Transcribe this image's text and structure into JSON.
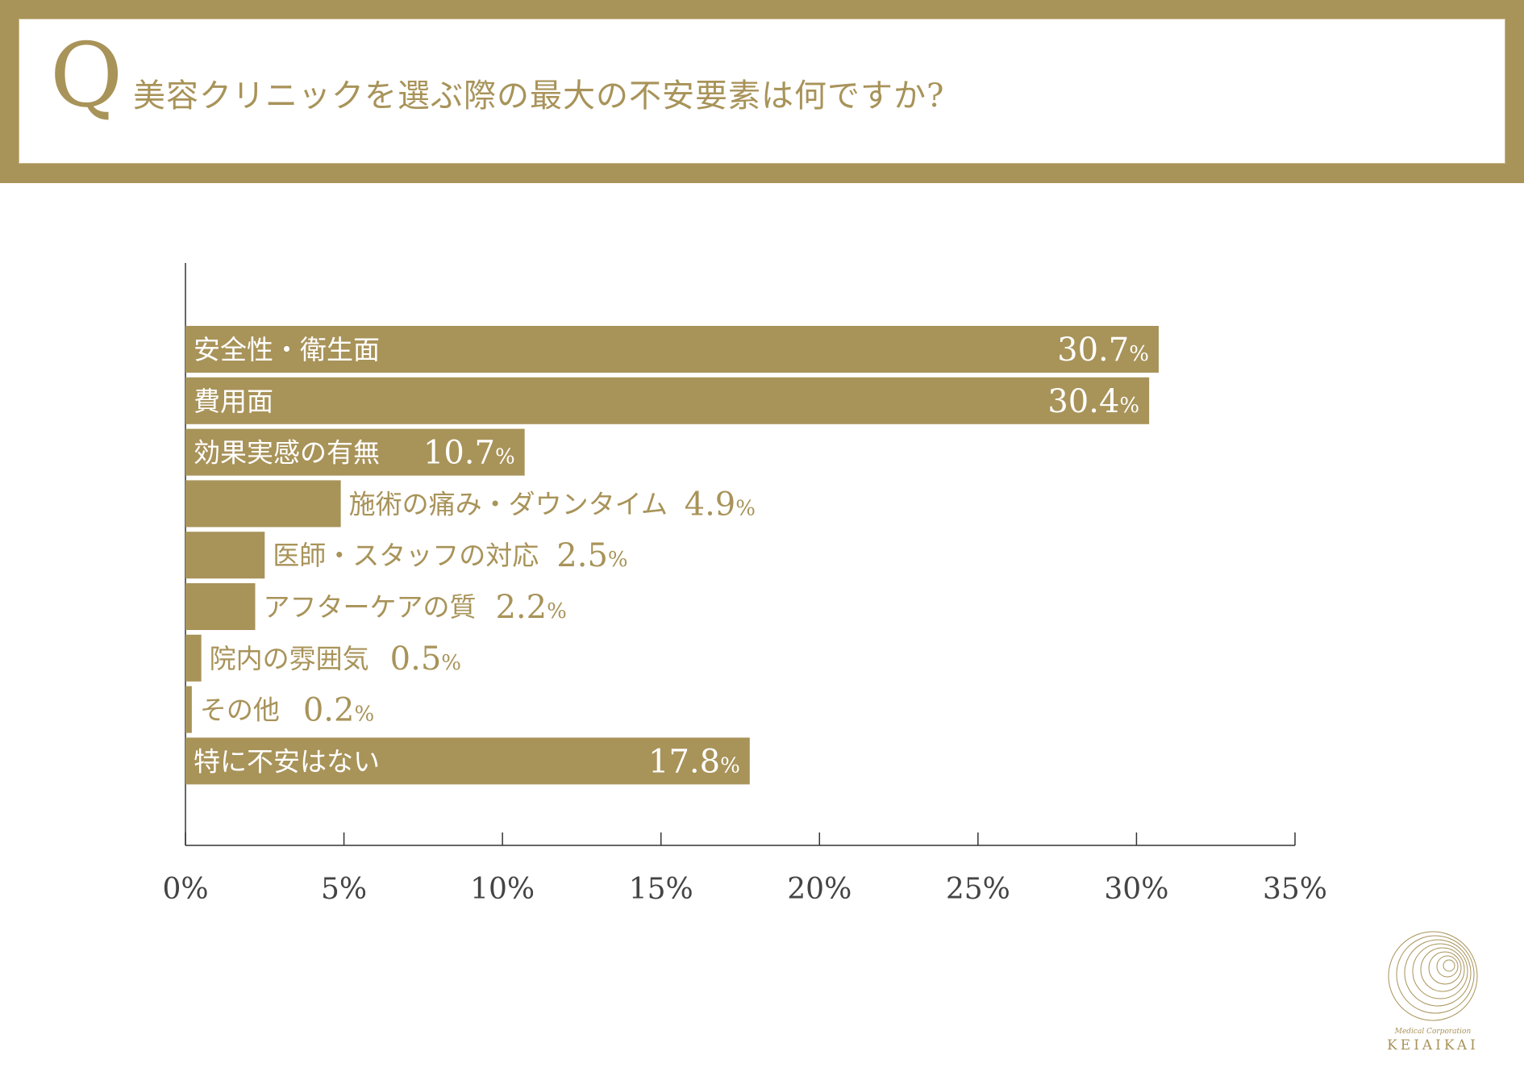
{
  "header": {
    "q_letter": "Q",
    "question": "美容クリニックを選ぶ際の最大の不安要素は何ですか?"
  },
  "colors": {
    "accent": "#a89359",
    "text_on_bar": "#ffffff",
    "axis": "#333333",
    "tick_text": "#444444"
  },
  "chart_data": {
    "type": "bar",
    "orientation": "horizontal",
    "categories": [
      "安全性・衛生面",
      "費用面",
      "効果実感の有無",
      "施術の痛み・ダウンタイム",
      "医師・スタッフの対応",
      "アフターケアの質",
      "院内の雰囲気",
      "その他",
      "特に不安はない"
    ],
    "values": [
      30.7,
      30.4,
      10.7,
      4.9,
      2.5,
      2.2,
      0.5,
      0.2,
      17.8
    ],
    "value_labels": [
      "30.7",
      "30.4",
      "10.7",
      "4.9",
      "2.5",
      "2.2",
      "0.5",
      "0.2",
      "17.8"
    ],
    "value_suffix": "%",
    "xlim": [
      0,
      35
    ],
    "xticks": [
      0,
      5,
      10,
      15,
      20,
      25,
      30,
      35
    ],
    "xtick_labels": [
      "0%",
      "5%",
      "10%",
      "15%",
      "20%",
      "25%",
      "30%",
      "35%"
    ],
    "grid": false,
    "legend": "none"
  },
  "logo": {
    "subtitle": "Medical Corporation",
    "name": "KEIAIKAI"
  }
}
